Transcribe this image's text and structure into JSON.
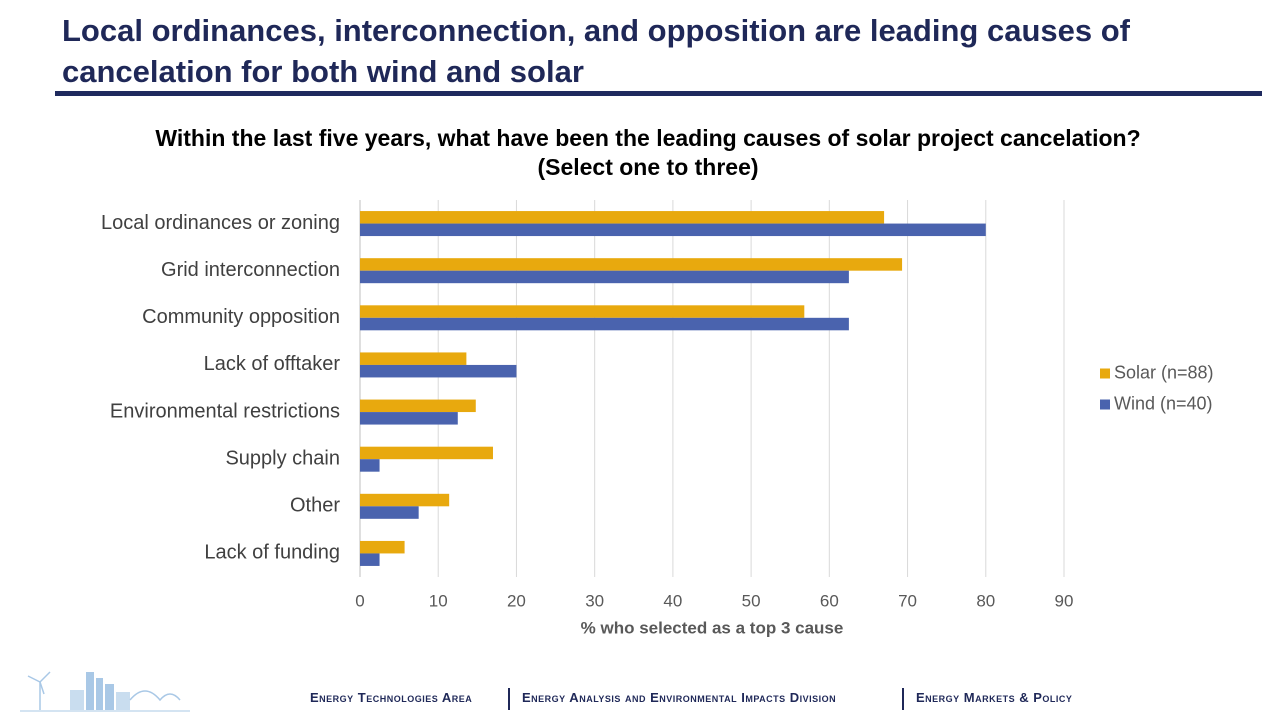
{
  "slide_title": "Local ordinances, interconnection, and opposition are leading causes of cancelation for both wind and solar",
  "footer": [
    "Energy Technologies Area",
    "Energy Analysis and Environmental Impacts Division",
    "Energy Markets & Policy"
  ],
  "chart_data": {
    "type": "hbar",
    "title": "Within the last five years, what have been the leading causes of solar project cancelation? (Select one to three)",
    "x_label": "% who selected as a top 3 cause",
    "categories": [
      "Local ordinances or zoning",
      "Grid interconnection",
      "Community opposition",
      "Lack of offtaker",
      "Environmental restrictions",
      "Supply chain",
      "Other",
      "Lack of funding"
    ],
    "series": [
      {
        "name": "Solar (n=88)",
        "color": "#e8a90e",
        "values": [
          67.0,
          69.3,
          56.8,
          13.6,
          14.8,
          17.0,
          11.4,
          5.7
        ]
      },
      {
        "name": "Wind (n=40)",
        "color": "#4a63ae",
        "values": [
          80,
          62.5,
          62.5,
          20,
          12.5,
          2.5,
          7.5,
          2.5
        ]
      }
    ],
    "xlim": [
      0,
      90
    ],
    "xticks": [
      0,
      10,
      20,
      30,
      40,
      50,
      60,
      70,
      80,
      90
    ],
    "grid": true,
    "legend": "right"
  }
}
